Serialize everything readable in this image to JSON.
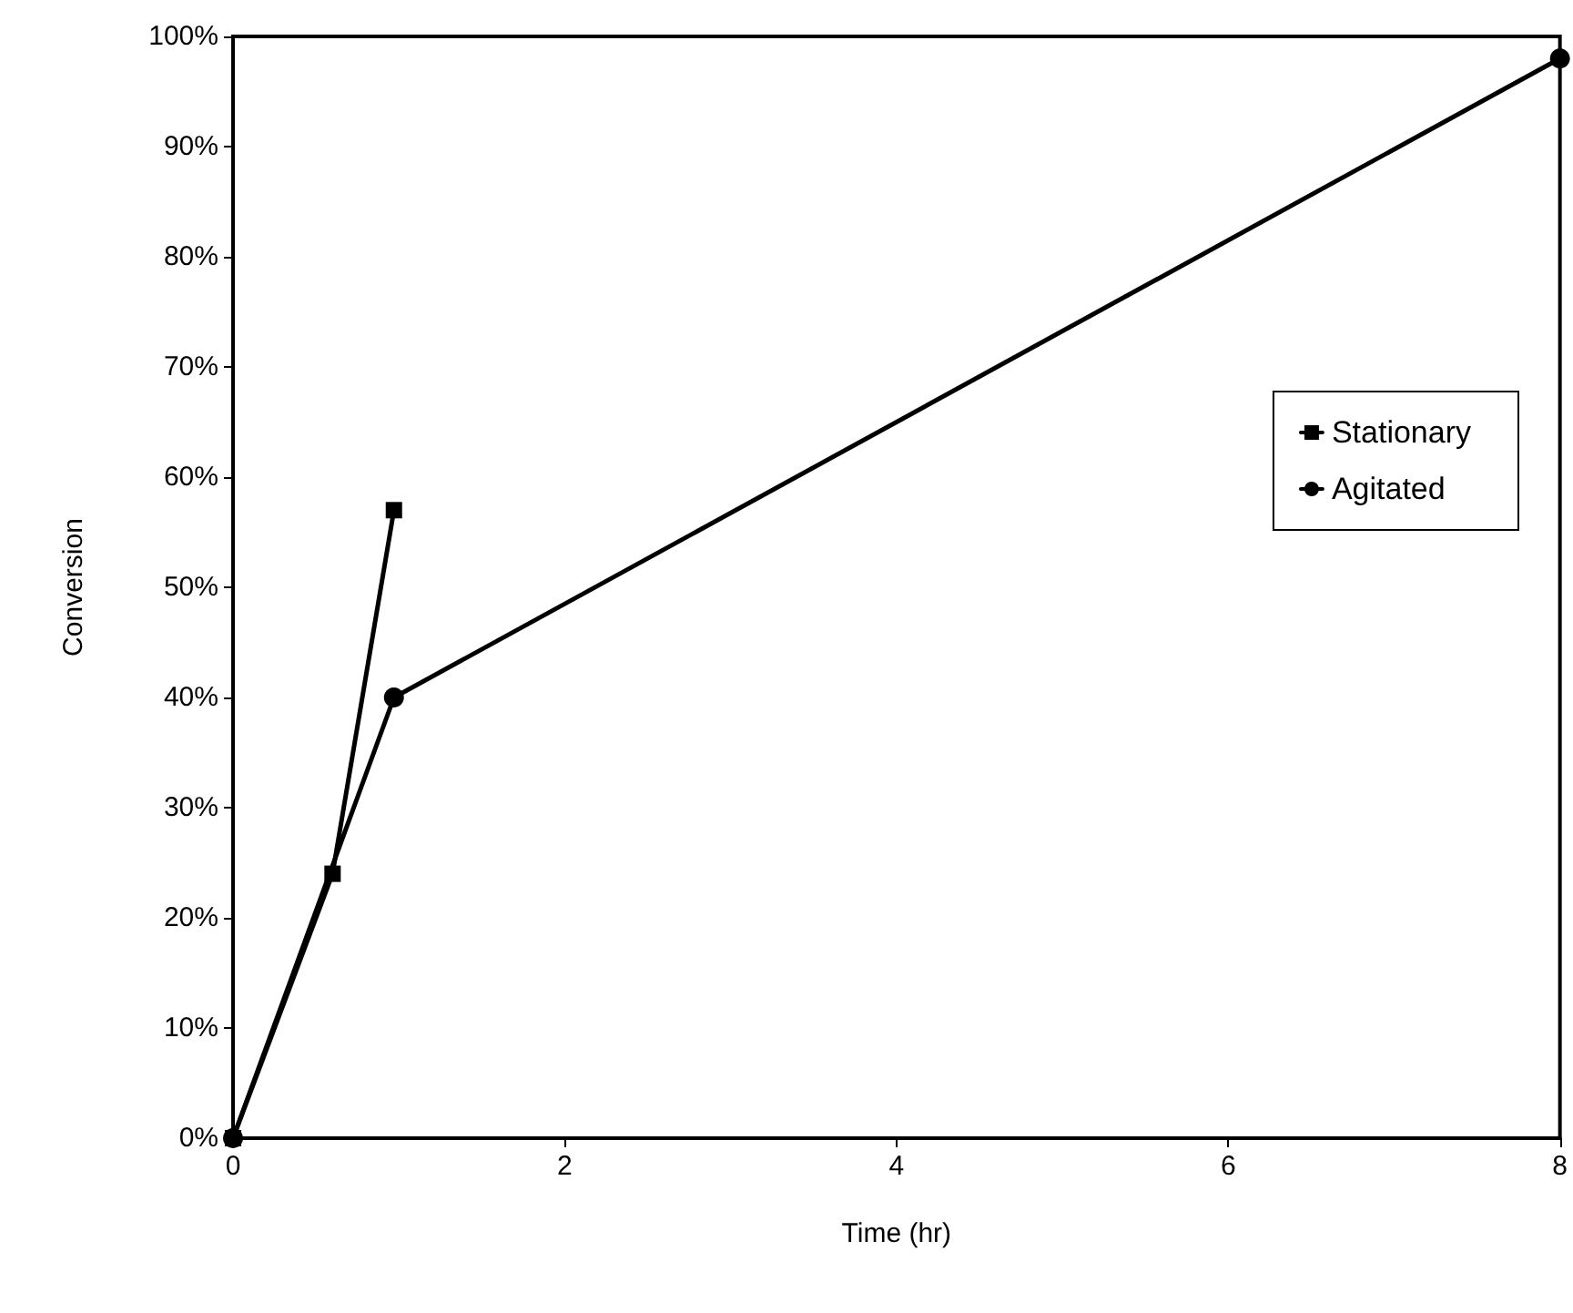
{
  "chart_data": {
    "type": "line",
    "xlabel": "Time (hr)",
    "ylabel": "Conversion",
    "series": [
      {
        "name": "Stationary",
        "color": "#000000",
        "marker": "square",
        "x": [
          0,
          0.6,
          0.97
        ],
        "values": [
          0,
          24,
          57
        ]
      },
      {
        "name": "Agitated",
        "color": "#000000",
        "marker": "circle",
        "x": [
          0,
          0.97,
          8
        ],
        "values": [
          0,
          40,
          98
        ]
      }
    ],
    "xlim": [
      0,
      8
    ],
    "xticks": [
      0,
      2,
      4,
      6,
      8
    ],
    "ylim": [
      0,
      100
    ],
    "yticks": [
      {
        "value": 0,
        "label": "0%"
      },
      {
        "value": 10,
        "label": "10%"
      },
      {
        "value": 20,
        "label": "20%"
      },
      {
        "value": 30,
        "label": "30%"
      },
      {
        "value": 40,
        "label": "40%"
      },
      {
        "value": 50,
        "label": "50%"
      },
      {
        "value": 60,
        "label": "60%"
      },
      {
        "value": 70,
        "label": "70%"
      },
      {
        "value": 80,
        "label": "80%"
      },
      {
        "value": 90,
        "label": "90%"
      },
      {
        "value": 100,
        "label": "100%"
      }
    ],
    "grid": false,
    "legend": "top right",
    "line_style": "solid"
  }
}
